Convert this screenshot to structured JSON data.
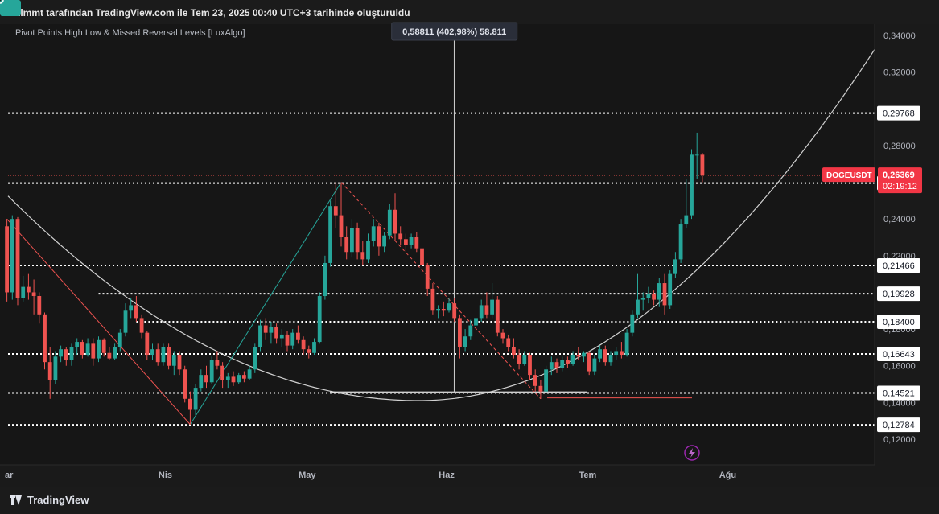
{
  "header": {
    "caption": "ozlmmt tarafından TradingView.com ile Tem 23, 2025 00:40 UTC+3 tarihinde oluşturuldu"
  },
  "indicator": {
    "title": "Pivot Points High Low & Missed Reversal Levels [LuxAlgo]"
  },
  "crosshair": {
    "label": "0,58811 (402,98%) 58.811",
    "date_index": 81
  },
  "branding": {
    "logo_text": "TradingView"
  },
  "colors": {
    "up": "#26a69a",
    "down": "#ef5350",
    "level_line": "#ffffff",
    "curve": "#e6e6e6",
    "price_tag": "#f23645"
  },
  "chart_data": {
    "type": "candlestick",
    "symbol": "DOGEUSDT",
    "ylim": [
      0.11,
      0.35
    ],
    "y_ticks": [
      "0,34000",
      "0,32000",
      "0,28000",
      "0,24000",
      "0,22000",
      "0,18000",
      "0,16000",
      "0,14000",
      "0,12000"
    ],
    "y_tick_values": [
      0.34,
      0.32,
      0.28,
      0.24,
      0.22,
      0.18,
      0.16,
      0.14,
      0.12
    ],
    "x_ticks": [
      "ar",
      "Nis",
      "May",
      "Haz",
      "Tem",
      "Ağu"
    ],
    "x_tick_index": [
      -2,
      27,
      53,
      79,
      105,
      131
    ],
    "x_range": [
      -3,
      137
    ],
    "levels": [
      {
        "label": "0,29768",
        "value": 0.29768,
        "start": -3
      },
      {
        "label": "0,25951",
        "value": 0.25951,
        "start": -3
      },
      {
        "label": "0,21466",
        "value": 0.21466,
        "start": -3
      },
      {
        "label": "0,19928",
        "value": 0.19928,
        "start": 15
      },
      {
        "label": "0,18400",
        "value": 0.184,
        "start": 22
      },
      {
        "label": "0,16643",
        "value": 0.16643,
        "start": -3
      },
      {
        "label": "0,14521",
        "value": 0.14521,
        "start": -3
      },
      {
        "label": "0,12784",
        "value": 0.12784,
        "start": -3
      }
    ],
    "current_price": {
      "symbol": "DOGEUSDT",
      "value": 0.26369,
      "label": "0,26369",
      "countdown": "02:19:12"
    },
    "pivot_high": {
      "index": 60,
      "value": 0.26
    },
    "pivot_low": {
      "index": 32,
      "value": 0.128
    },
    "missed_pivot_low": {
      "index": 97,
      "value": 0.142
    },
    "zigzag": [
      {
        "i": -2,
        "v": 0.24,
        "color": "#ef5350"
      },
      {
        "i": 32,
        "v": 0.128,
        "color": "#26a69a"
      },
      {
        "i": 60,
        "v": 0.26,
        "color": "#ef5350"
      },
      {
        "i": 97,
        "v": 0.142,
        "color": "#ef5350"
      }
    ],
    "candles": [
      {
        "i": -2,
        "o": 0.236,
        "h": 0.24,
        "l": 0.195,
        "c": 0.2
      },
      {
        "i": -1,
        "o": 0.2,
        "h": 0.242,
        "l": 0.196,
        "c": 0.24
      },
      {
        "i": 0,
        "o": 0.24,
        "h": 0.241,
        "l": 0.193,
        "c": 0.197
      },
      {
        "i": 1,
        "o": 0.197,
        "h": 0.209,
        "l": 0.195,
        "c": 0.203
      },
      {
        "i": 2,
        "o": 0.203,
        "h": 0.21,
        "l": 0.196,
        "c": 0.2
      },
      {
        "i": 3,
        "o": 0.2,
        "h": 0.207,
        "l": 0.188,
        "c": 0.198
      },
      {
        "i": 4,
        "o": 0.198,
        "h": 0.2,
        "l": 0.183,
        "c": 0.188
      },
      {
        "i": 5,
        "o": 0.188,
        "h": 0.189,
        "l": 0.158,
        "c": 0.162
      },
      {
        "i": 6,
        "o": 0.162,
        "h": 0.17,
        "l": 0.142,
        "c": 0.152
      },
      {
        "i": 7,
        "o": 0.152,
        "h": 0.168,
        "l": 0.15,
        "c": 0.165
      },
      {
        "i": 8,
        "o": 0.165,
        "h": 0.171,
        "l": 0.162,
        "c": 0.169
      },
      {
        "i": 9,
        "o": 0.169,
        "h": 0.17,
        "l": 0.16,
        "c": 0.163
      },
      {
        "i": 10,
        "o": 0.163,
        "h": 0.172,
        "l": 0.16,
        "c": 0.17
      },
      {
        "i": 11,
        "o": 0.17,
        "h": 0.175,
        "l": 0.166,
        "c": 0.173
      },
      {
        "i": 12,
        "o": 0.173,
        "h": 0.174,
        "l": 0.164,
        "c": 0.166
      },
      {
        "i": 13,
        "o": 0.166,
        "h": 0.175,
        "l": 0.165,
        "c": 0.172
      },
      {
        "i": 14,
        "o": 0.172,
        "h": 0.175,
        "l": 0.16,
        "c": 0.164
      },
      {
        "i": 15,
        "o": 0.164,
        "h": 0.176,
        "l": 0.162,
        "c": 0.174
      },
      {
        "i": 16,
        "o": 0.174,
        "h": 0.175,
        "l": 0.165,
        "c": 0.167
      },
      {
        "i": 17,
        "o": 0.167,
        "h": 0.17,
        "l": 0.163,
        "c": 0.164
      },
      {
        "i": 18,
        "o": 0.164,
        "h": 0.172,
        "l": 0.163,
        "c": 0.17
      },
      {
        "i": 19,
        "o": 0.17,
        "h": 0.18,
        "l": 0.168,
        "c": 0.178
      },
      {
        "i": 20,
        "o": 0.178,
        "h": 0.194,
        "l": 0.176,
        "c": 0.19
      },
      {
        "i": 21,
        "o": 0.19,
        "h": 0.197,
        "l": 0.186,
        "c": 0.193
      },
      {
        "i": 22,
        "o": 0.193,
        "h": 0.198,
        "l": 0.184,
        "c": 0.186
      },
      {
        "i": 23,
        "o": 0.186,
        "h": 0.188,
        "l": 0.175,
        "c": 0.178
      },
      {
        "i": 24,
        "o": 0.178,
        "h": 0.179,
        "l": 0.163,
        "c": 0.166
      },
      {
        "i": 25,
        "o": 0.166,
        "h": 0.172,
        "l": 0.163,
        "c": 0.169
      },
      {
        "i": 26,
        "o": 0.169,
        "h": 0.172,
        "l": 0.16,
        "c": 0.162
      },
      {
        "i": 27,
        "o": 0.162,
        "h": 0.172,
        "l": 0.16,
        "c": 0.17
      },
      {
        "i": 28,
        "o": 0.17,
        "h": 0.172,
        "l": 0.158,
        "c": 0.16
      },
      {
        "i": 29,
        "o": 0.16,
        "h": 0.168,
        "l": 0.155,
        "c": 0.166
      },
      {
        "i": 30,
        "o": 0.166,
        "h": 0.168,
        "l": 0.155,
        "c": 0.158
      },
      {
        "i": 31,
        "o": 0.158,
        "h": 0.16,
        "l": 0.14,
        "c": 0.142
      },
      {
        "i": 32,
        "o": 0.142,
        "h": 0.146,
        "l": 0.128,
        "c": 0.136
      },
      {
        "i": 33,
        "o": 0.136,
        "h": 0.15,
        "l": 0.133,
        "c": 0.148
      },
      {
        "i": 34,
        "o": 0.148,
        "h": 0.158,
        "l": 0.146,
        "c": 0.155
      },
      {
        "i": 35,
        "o": 0.155,
        "h": 0.16,
        "l": 0.148,
        "c": 0.151
      },
      {
        "i": 36,
        "o": 0.151,
        "h": 0.165,
        "l": 0.15,
        "c": 0.163
      },
      {
        "i": 37,
        "o": 0.163,
        "h": 0.168,
        "l": 0.158,
        "c": 0.16
      },
      {
        "i": 38,
        "o": 0.16,
        "h": 0.162,
        "l": 0.148,
        "c": 0.152
      },
      {
        "i": 39,
        "o": 0.152,
        "h": 0.156,
        "l": 0.148,
        "c": 0.154
      },
      {
        "i": 40,
        "o": 0.154,
        "h": 0.157,
        "l": 0.149,
        "c": 0.151
      },
      {
        "i": 41,
        "o": 0.151,
        "h": 0.156,
        "l": 0.15,
        "c": 0.155
      },
      {
        "i": 42,
        "o": 0.155,
        "h": 0.157,
        "l": 0.151,
        "c": 0.153
      },
      {
        "i": 43,
        "o": 0.153,
        "h": 0.16,
        "l": 0.152,
        "c": 0.158
      },
      {
        "i": 44,
        "o": 0.158,
        "h": 0.172,
        "l": 0.156,
        "c": 0.17
      },
      {
        "i": 45,
        "o": 0.17,
        "h": 0.185,
        "l": 0.168,
        "c": 0.182
      },
      {
        "i": 46,
        "o": 0.182,
        "h": 0.186,
        "l": 0.174,
        "c": 0.178
      },
      {
        "i": 47,
        "o": 0.178,
        "h": 0.184,
        "l": 0.172,
        "c": 0.181
      },
      {
        "i": 48,
        "o": 0.181,
        "h": 0.183,
        "l": 0.172,
        "c": 0.175
      },
      {
        "i": 49,
        "o": 0.175,
        "h": 0.18,
        "l": 0.17,
        "c": 0.177
      },
      {
        "i": 50,
        "o": 0.177,
        "h": 0.179,
        "l": 0.168,
        "c": 0.171
      },
      {
        "i": 51,
        "o": 0.171,
        "h": 0.18,
        "l": 0.169,
        "c": 0.178
      },
      {
        "i": 52,
        "o": 0.178,
        "h": 0.182,
        "l": 0.172,
        "c": 0.174
      },
      {
        "i": 53,
        "o": 0.174,
        "h": 0.176,
        "l": 0.166,
        "c": 0.169
      },
      {
        "i": 54,
        "o": 0.169,
        "h": 0.171,
        "l": 0.164,
        "c": 0.167
      },
      {
        "i": 55,
        "o": 0.167,
        "h": 0.175,
        "l": 0.166,
        "c": 0.173
      },
      {
        "i": 56,
        "o": 0.173,
        "h": 0.2,
        "l": 0.172,
        "c": 0.198
      },
      {
        "i": 57,
        "o": 0.198,
        "h": 0.22,
        "l": 0.196,
        "c": 0.216
      },
      {
        "i": 58,
        "o": 0.216,
        "h": 0.25,
        "l": 0.214,
        "c": 0.247
      },
      {
        "i": 59,
        "o": 0.247,
        "h": 0.26,
        "l": 0.235,
        "c": 0.242
      },
      {
        "i": 60,
        "o": 0.242,
        "h": 0.26,
        "l": 0.225,
        "c": 0.23
      },
      {
        "i": 61,
        "o": 0.23,
        "h": 0.236,
        "l": 0.218,
        "c": 0.222
      },
      {
        "i": 62,
        "o": 0.222,
        "h": 0.24,
        "l": 0.219,
        "c": 0.235
      },
      {
        "i": 63,
        "o": 0.235,
        "h": 0.238,
        "l": 0.218,
        "c": 0.222
      },
      {
        "i": 64,
        "o": 0.222,
        "h": 0.228,
        "l": 0.215,
        "c": 0.218
      },
      {
        "i": 65,
        "o": 0.218,
        "h": 0.232,
        "l": 0.216,
        "c": 0.228
      },
      {
        "i": 66,
        "o": 0.228,
        "h": 0.24,
        "l": 0.225,
        "c": 0.236
      },
      {
        "i": 67,
        "o": 0.236,
        "h": 0.238,
        "l": 0.22,
        "c": 0.225
      },
      {
        "i": 68,
        "o": 0.225,
        "h": 0.233,
        "l": 0.222,
        "c": 0.231
      },
      {
        "i": 69,
        "o": 0.231,
        "h": 0.248,
        "l": 0.229,
        "c": 0.245
      },
      {
        "i": 70,
        "o": 0.245,
        "h": 0.254,
        "l": 0.228,
        "c": 0.232
      },
      {
        "i": 71,
        "o": 0.232,
        "h": 0.236,
        "l": 0.226,
        "c": 0.229
      },
      {
        "i": 72,
        "o": 0.229,
        "h": 0.232,
        "l": 0.222,
        "c": 0.226
      },
      {
        "i": 73,
        "o": 0.226,
        "h": 0.232,
        "l": 0.224,
        "c": 0.23
      },
      {
        "i": 74,
        "o": 0.23,
        "h": 0.233,
        "l": 0.222,
        "c": 0.224
      },
      {
        "i": 75,
        "o": 0.224,
        "h": 0.226,
        "l": 0.212,
        "c": 0.215
      },
      {
        "i": 76,
        "o": 0.215,
        "h": 0.216,
        "l": 0.198,
        "c": 0.202
      },
      {
        "i": 77,
        "o": 0.202,
        "h": 0.205,
        "l": 0.188,
        "c": 0.19
      },
      {
        "i": 78,
        "o": 0.19,
        "h": 0.193,
        "l": 0.186,
        "c": 0.191
      },
      {
        "i": 79,
        "o": 0.191,
        "h": 0.195,
        "l": 0.187,
        "c": 0.19
      },
      {
        "i": 80,
        "o": 0.19,
        "h": 0.197,
        "l": 0.189,
        "c": 0.194
      },
      {
        "i": 81,
        "o": 0.194,
        "h": 0.197,
        "l": 0.184,
        "c": 0.186
      },
      {
        "i": 82,
        "o": 0.186,
        "h": 0.188,
        "l": 0.164,
        "c": 0.17
      },
      {
        "i": 83,
        "o": 0.17,
        "h": 0.18,
        "l": 0.168,
        "c": 0.176
      },
      {
        "i": 84,
        "o": 0.176,
        "h": 0.185,
        "l": 0.174,
        "c": 0.182
      },
      {
        "i": 85,
        "o": 0.182,
        "h": 0.19,
        "l": 0.178,
        "c": 0.186
      },
      {
        "i": 86,
        "o": 0.186,
        "h": 0.196,
        "l": 0.184,
        "c": 0.193
      },
      {
        "i": 87,
        "o": 0.193,
        "h": 0.2,
        "l": 0.186,
        "c": 0.188
      },
      {
        "i": 88,
        "o": 0.188,
        "h": 0.205,
        "l": 0.186,
        "c": 0.196
      },
      {
        "i": 89,
        "o": 0.196,
        "h": 0.198,
        "l": 0.176,
        "c": 0.178
      },
      {
        "i": 90,
        "o": 0.178,
        "h": 0.18,
        "l": 0.172,
        "c": 0.175
      },
      {
        "i": 91,
        "o": 0.175,
        "h": 0.177,
        "l": 0.168,
        "c": 0.17
      },
      {
        "i": 92,
        "o": 0.17,
        "h": 0.175,
        "l": 0.164,
        "c": 0.166
      },
      {
        "i": 93,
        "o": 0.166,
        "h": 0.169,
        "l": 0.158,
        "c": 0.161
      },
      {
        "i": 94,
        "o": 0.161,
        "h": 0.168,
        "l": 0.16,
        "c": 0.166
      },
      {
        "i": 95,
        "o": 0.166,
        "h": 0.167,
        "l": 0.152,
        "c": 0.155
      },
      {
        "i": 96,
        "o": 0.155,
        "h": 0.158,
        "l": 0.146,
        "c": 0.149
      },
      {
        "i": 97,
        "o": 0.149,
        "h": 0.152,
        "l": 0.142,
        "c": 0.146
      },
      {
        "i": 98,
        "o": 0.146,
        "h": 0.16,
        "l": 0.145,
        "c": 0.158
      },
      {
        "i": 99,
        "o": 0.158,
        "h": 0.165,
        "l": 0.155,
        "c": 0.162
      },
      {
        "i": 100,
        "o": 0.162,
        "h": 0.164,
        "l": 0.156,
        "c": 0.159
      },
      {
        "i": 101,
        "o": 0.159,
        "h": 0.165,
        "l": 0.157,
        "c": 0.163
      },
      {
        "i": 102,
        "o": 0.163,
        "h": 0.165,
        "l": 0.159,
        "c": 0.161
      },
      {
        "i": 103,
        "o": 0.161,
        "h": 0.168,
        "l": 0.16,
        "c": 0.166
      },
      {
        "i": 104,
        "o": 0.166,
        "h": 0.17,
        "l": 0.163,
        "c": 0.165
      },
      {
        "i": 105,
        "o": 0.165,
        "h": 0.168,
        "l": 0.162,
        "c": 0.167
      },
      {
        "i": 106,
        "o": 0.167,
        "h": 0.168,
        "l": 0.155,
        "c": 0.157
      },
      {
        "i": 107,
        "o": 0.157,
        "h": 0.166,
        "l": 0.155,
        "c": 0.164
      },
      {
        "i": 108,
        "o": 0.164,
        "h": 0.171,
        "l": 0.162,
        "c": 0.169
      },
      {
        "i": 109,
        "o": 0.169,
        "h": 0.171,
        "l": 0.16,
        "c": 0.162
      },
      {
        "i": 110,
        "o": 0.162,
        "h": 0.168,
        "l": 0.16,
        "c": 0.166
      },
      {
        "i": 111,
        "o": 0.166,
        "h": 0.17,
        "l": 0.163,
        "c": 0.168
      },
      {
        "i": 112,
        "o": 0.168,
        "h": 0.173,
        "l": 0.164,
        "c": 0.166
      },
      {
        "i": 113,
        "o": 0.166,
        "h": 0.18,
        "l": 0.165,
        "c": 0.178
      },
      {
        "i": 114,
        "o": 0.178,
        "h": 0.19,
        "l": 0.176,
        "c": 0.188
      },
      {
        "i": 115,
        "o": 0.188,
        "h": 0.21,
        "l": 0.186,
        "c": 0.196
      },
      {
        "i": 116,
        "o": 0.196,
        "h": 0.2,
        "l": 0.19,
        "c": 0.197
      },
      {
        "i": 117,
        "o": 0.197,
        "h": 0.203,
        "l": 0.194,
        "c": 0.199
      },
      {
        "i": 118,
        "o": 0.199,
        "h": 0.201,
        "l": 0.193,
        "c": 0.196
      },
      {
        "i": 119,
        "o": 0.196,
        "h": 0.208,
        "l": 0.192,
        "c": 0.205
      },
      {
        "i": 120,
        "o": 0.205,
        "h": 0.21,
        "l": 0.188,
        "c": 0.193
      },
      {
        "i": 121,
        "o": 0.193,
        "h": 0.212,
        "l": 0.191,
        "c": 0.21
      },
      {
        "i": 122,
        "o": 0.21,
        "h": 0.222,
        "l": 0.208,
        "c": 0.218
      },
      {
        "i": 123,
        "o": 0.218,
        "h": 0.24,
        "l": 0.216,
        "c": 0.237
      },
      {
        "i": 124,
        "o": 0.237,
        "h": 0.262,
        "l": 0.235,
        "c": 0.242
      },
      {
        "i": 125,
        "o": 0.242,
        "h": 0.278,
        "l": 0.24,
        "c": 0.275
      },
      {
        "i": 126,
        "o": 0.275,
        "h": 0.287,
        "l": 0.262,
        "c": 0.275
      },
      {
        "i": 127,
        "o": 0.275,
        "h": 0.276,
        "l": 0.26,
        "c": 0.264
      }
    ]
  }
}
